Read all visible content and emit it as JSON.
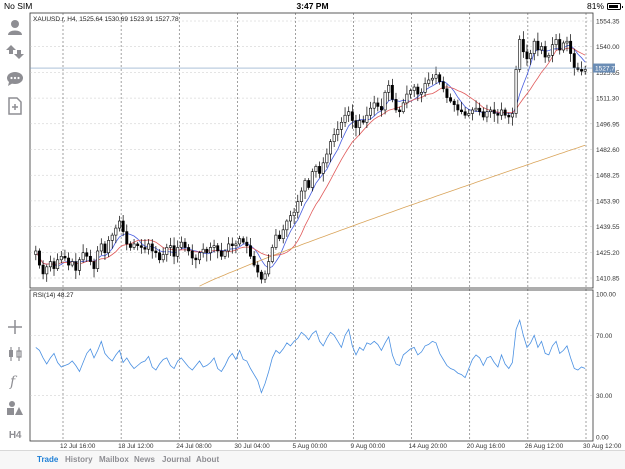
{
  "status_bar": {
    "carrier": "No SIM",
    "time": "3:47 PM",
    "battery": "81%"
  },
  "toolbar": {
    "items": [
      {
        "name": "account-icon"
      },
      {
        "name": "quote-icon"
      },
      {
        "name": "chat-icon"
      },
      {
        "name": "document-icon"
      },
      {
        "name": "crosshair-icon"
      },
      {
        "name": "chart-type-icon"
      },
      {
        "name": "indicator-icon"
      },
      {
        "name": "objects-icon"
      }
    ],
    "timeframe": "H4"
  },
  "chart": {
    "header": "XAUUSD.r, H4, 1525.64 1530.69 1523.91 1527.78",
    "price_labels": [
      "1554.35",
      "1540.00",
      "1525.65",
      "1511.30",
      "1496.95",
      "1482.60",
      "1468.25",
      "1453.90",
      "1439.55",
      "1425.20",
      "1410.85"
    ],
    "current_price": "1527.78",
    "rsi_label": "RSI(14) 48.27",
    "rsi_levels": [
      "100.00",
      "70.00",
      "30.00",
      "0.00"
    ],
    "date_labels": [
      "12 Jul 16:00",
      "18 Jul 12:00",
      "24 Jul 08:00",
      "30 Jul 04:00",
      "5 Aug 00:00",
      "9 Aug 00:00",
      "14 Aug 20:00",
      "20 Aug 16:00",
      "26 Aug 12:00",
      "30 Aug 12:00"
    ],
    "colors": {
      "bull": "#000000",
      "bear": "#000000",
      "ma_fast": "#4a5fe0",
      "ma_mid": "#e05a5a",
      "ma_slow": "#d9a45a",
      "rsi_line": "#4a90e2",
      "price_line": "#7a9cc0",
      "price_tag": "#6b8db5"
    }
  },
  "chart_data": {
    "type": "candlestick",
    "symbol": "XAUUSD.r",
    "timeframe": "H4",
    "ohlc_last": {
      "open": 1525.64,
      "high": 1530.69,
      "low": 1523.91,
      "close": 1527.78
    },
    "y_range": [
      1403.0,
      1559.0
    ],
    "close_series": [
      1424,
      1416,
      1411,
      1415,
      1418,
      1414,
      1419,
      1421,
      1420,
      1416,
      1418,
      1413,
      1419,
      1423,
      1421,
      1418,
      1414,
      1424,
      1428,
      1423,
      1430,
      1433,
      1437,
      1441,
      1435,
      1428,
      1426,
      1428,
      1427,
      1426,
      1425,
      1428,
      1424,
      1423,
      1419,
      1422,
      1426,
      1427,
      1421,
      1426,
      1429,
      1426,
      1424,
      1420,
      1419,
      1423,
      1425,
      1423,
      1426,
      1427,
      1424,
      1421,
      1424,
      1428,
      1427,
      1428,
      1431,
      1429,
      1427,
      1421,
      1416,
      1412,
      1408,
      1411,
      1418,
      1426,
      1433,
      1431,
      1436,
      1441,
      1444,
      1446,
      1452,
      1458,
      1464,
      1460,
      1469,
      1472,
      1468,
      1474,
      1479,
      1486,
      1490,
      1493,
      1497,
      1501,
      1503,
      1498,
      1494,
      1498,
      1497,
      1501,
      1505,
      1508,
      1506,
      1504,
      1514,
      1518,
      1510,
      1504,
      1503,
      1508,
      1513,
      1515,
      1517,
      1513,
      1514,
      1519,
      1521,
      1522,
      1524,
      1520,
      1516,
      1511,
      1509,
      1507,
      1504,
      1503,
      1501,
      1502,
      1504,
      1505,
      1503,
      1500,
      1503,
      1504,
      1502,
      1501,
      1504,
      1501,
      1500,
      1502,
      1527,
      1544,
      1537,
      1533,
      1536,
      1543,
      1538,
      1540,
      1534,
      1535,
      1541,
      1544,
      1538,
      1542,
      1543,
      1536,
      1528,
      1527,
      1526,
      1527
    ],
    "ma_slow_range": [
      1404,
      1484
    ],
    "rsi_series": [
      62,
      60,
      55,
      51,
      55,
      58,
      52,
      49,
      50,
      51,
      53,
      50,
      46,
      52,
      58,
      61,
      55,
      60,
      66,
      58,
      55,
      53,
      57,
      60,
      52,
      55,
      51,
      48,
      50,
      52,
      53,
      56,
      49,
      47,
      51,
      54,
      55,
      50,
      48,
      53,
      55,
      52,
      49,
      47,
      50,
      53,
      49,
      50,
      52,
      55,
      48,
      46,
      50,
      55,
      58,
      54,
      60,
      54,
      53,
      48,
      44,
      40,
      32,
      38,
      46,
      55,
      60,
      58,
      61,
      65,
      63,
      66,
      68,
      72,
      70,
      67,
      71,
      73,
      66,
      63,
      68,
      72,
      70,
      66,
      62,
      70,
      74,
      63,
      57,
      62,
      60,
      65,
      64,
      66,
      64,
      60,
      65,
      69,
      57,
      51,
      50,
      57,
      59,
      61,
      62,
      57,
      59,
      63,
      64,
      66,
      65,
      58,
      54,
      50,
      48,
      47,
      45,
      44,
      42,
      48,
      54,
      57,
      55,
      50,
      55,
      56,
      52,
      49,
      57,
      51,
      48,
      52,
      74,
      80,
      70,
      62,
      65,
      70,
      62,
      66,
      58,
      57,
      63,
      66,
      58,
      60,
      63,
      55,
      48,
      47,
      49,
      48
    ],
    "rsi_range": [
      0,
      100
    ]
  }
}
